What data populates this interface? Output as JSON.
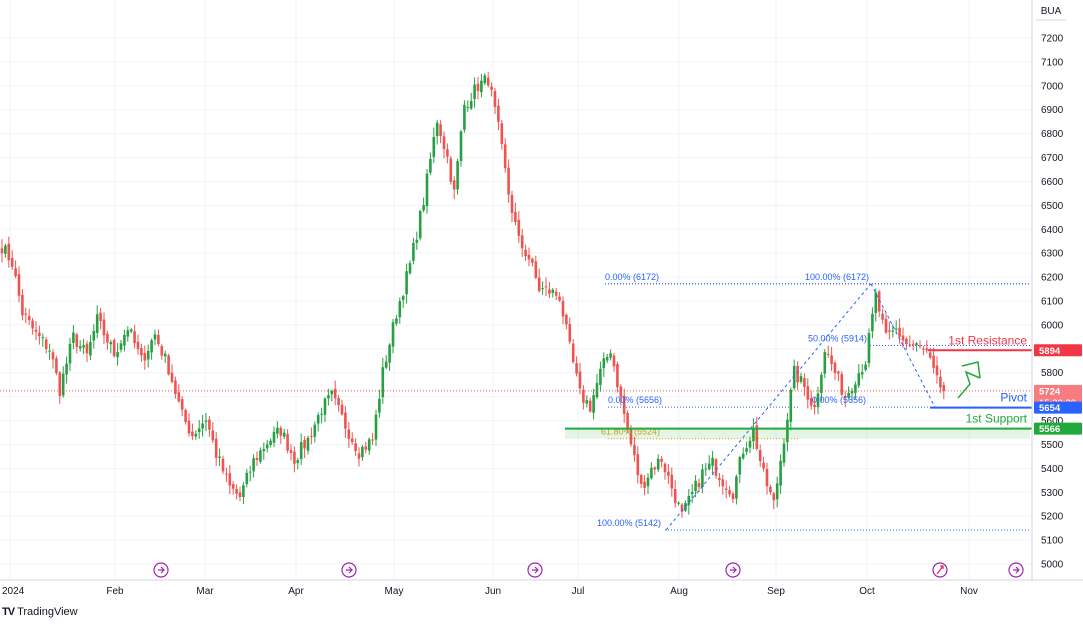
{
  "symbol": "BUA",
  "branding": "TradingView",
  "colors": {
    "up": "#26a042",
    "down": "#ef5350",
    "pivot": "#2962ff",
    "resistance": "#f23645",
    "support": "#22a93b",
    "grid": "#f0f3fa",
    "current_price_line": "#ef5350"
  },
  "chart_data": {
    "type": "candlestick",
    "y_ticks": [
      "7200",
      "7100",
      "7000",
      "6900",
      "6800",
      "6700",
      "6600",
      "6500",
      "6400",
      "6300",
      "6200",
      "6100",
      "6000",
      "5900",
      "5800",
      "5700",
      "5600",
      "5500",
      "5400",
      "5300",
      "5200",
      "5100",
      "5000"
    ],
    "y_range": [
      4960,
      7330
    ],
    "x_ticks": [
      "2024",
      "Feb",
      "Mar",
      "Apr",
      "May",
      "Jun",
      "Jul",
      "Aug",
      "Sep",
      "Oct",
      "Nov"
    ],
    "anchors": [
      [
        0,
        6330
      ],
      [
        3,
        6260
      ],
      [
        6,
        6050
      ],
      [
        10,
        5960
      ],
      [
        14,
        5900
      ],
      [
        17,
        5730
      ],
      [
        21,
        5950
      ],
      [
        25,
        5870
      ],
      [
        28,
        6020
      ],
      [
        33,
        5880
      ],
      [
        37,
        5990
      ],
      [
        41,
        5850
      ],
      [
        45,
        5960
      ],
      [
        49,
        5820
      ],
      [
        53,
        5620
      ],
      [
        56,
        5540
      ],
      [
        60,
        5610
      ],
      [
        63,
        5460
      ],
      [
        67,
        5320
      ],
      [
        70,
        5280
      ],
      [
        74,
        5430
      ],
      [
        78,
        5510
      ],
      [
        82,
        5560
      ],
      [
        86,
        5440
      ],
      [
        90,
        5520
      ],
      [
        94,
        5650
      ],
      [
        97,
        5700
      ],
      [
        101,
        5580
      ],
      [
        105,
        5470
      ],
      [
        109,
        5520
      ],
      [
        112,
        5800
      ],
      [
        116,
        6050
      ],
      [
        120,
        6250
      ],
      [
        124,
        6520
      ],
      [
        128,
        6860
      ],
      [
        131,
        6700
      ],
      [
        133,
        6550
      ],
      [
        136,
        6920
      ],
      [
        140,
        7000
      ],
      [
        143,
        7030
      ],
      [
        146,
        6820
      ],
      [
        149,
        6550
      ],
      [
        152,
        6350
      ],
      [
        155,
        6280
      ],
      [
        158,
        6150
      ],
      [
        161,
        6140
      ],
      [
        164,
        6120
      ],
      [
        167,
        5900
      ],
      [
        170,
        5710
      ],
      [
        173,
        5660
      ],
      [
        176,
        5800
      ],
      [
        179,
        5900
      ],
      [
        182,
        5690
      ],
      [
        185,
        5500
      ],
      [
        188,
        5320
      ],
      [
        191,
        5400
      ],
      [
        194,
        5440
      ],
      [
        197,
        5320
      ],
      [
        200,
        5200
      ],
      [
        203,
        5290
      ],
      [
        206,
        5380
      ],
      [
        209,
        5420
      ],
      [
        212,
        5350
      ],
      [
        215,
        5300
      ],
      [
        218,
        5480
      ],
      [
        221,
        5560
      ],
      [
        224,
        5370
      ],
      [
        227,
        5250
      ],
      [
        230,
        5530
      ],
      [
        233,
        5800
      ],
      [
        236,
        5740
      ],
      [
        239,
        5650
      ],
      [
        242,
        5900
      ],
      [
        245,
        5800
      ],
      [
        248,
        5700
      ],
      [
        251,
        5780
      ],
      [
        254,
        5850
      ],
      [
        257,
        6120
      ],
      [
        260,
        5940
      ],
      [
        263,
        5980
      ],
      [
        266,
        5920
      ],
      [
        269,
        5910
      ],
      [
        272,
        5880
      ],
      [
        275,
        5760
      ],
      [
        277,
        5724
      ]
    ],
    "fibonacci": [
      {
        "label": "0.00% (6172)",
        "value": 6172
      },
      {
        "label": "100.00% (6172)",
        "value": 6172
      },
      {
        "label": "50.00% (5914)",
        "value": 5914
      },
      {
        "label": "0.00% (5656)",
        "value": 5656
      },
      {
        "label": "0.00% (5656)",
        "value": 5656
      },
      {
        "label": "61.80% (5524)",
        "value": 5524
      },
      {
        "label": "100.00% (5142)",
        "value": 5142
      }
    ],
    "levels": [
      {
        "name": "1st Resistance",
        "value": 5894,
        "tag": "5894"
      },
      {
        "name": "Pivot",
        "value": 5654,
        "tag": "5654"
      },
      {
        "name": "1st Support",
        "value": 5566,
        "tag": "5566"
      }
    ],
    "current_price": {
      "value": 5724,
      "tag": "5724",
      "countdown": "15:23:39"
    }
  }
}
